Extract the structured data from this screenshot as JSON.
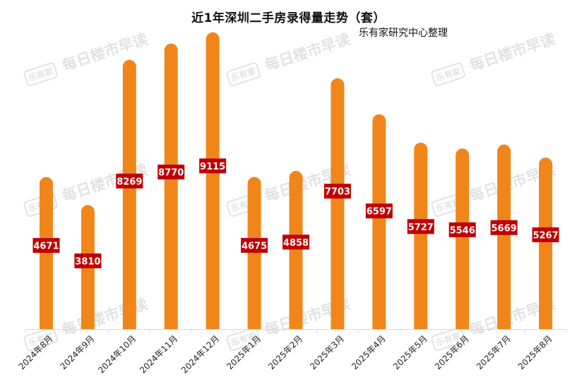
{
  "watermark": {
    "logo": "乐有家",
    "text": "每日楼市早读"
  },
  "chart_data": {
    "type": "bar",
    "title": "近1年深圳二手房录得量走势（套）",
    "subtitle": "乐有家研究中心整理",
    "xlabel": "",
    "ylabel": "",
    "ylim": [
      0,
      10000
    ],
    "grid": false,
    "legend": "none",
    "bar_color": "#F0861A",
    "label_bg_color": "#C00000",
    "label_text_color": "#FFFFFF",
    "categories": [
      "2024年8月",
      "2024年9月",
      "2024年10月",
      "2024年11月",
      "2024年12月",
      "2025年1月",
      "2025年2月",
      "2025年3月",
      "2025年4月",
      "2025年5月",
      "2025年6月",
      "2025年7月",
      "2025年8月"
    ],
    "values": [
      4671,
      3810,
      8269,
      8770,
      9115,
      4675,
      4858,
      7703,
      6597,
      5727,
      5546,
      5669,
      5267
    ]
  }
}
